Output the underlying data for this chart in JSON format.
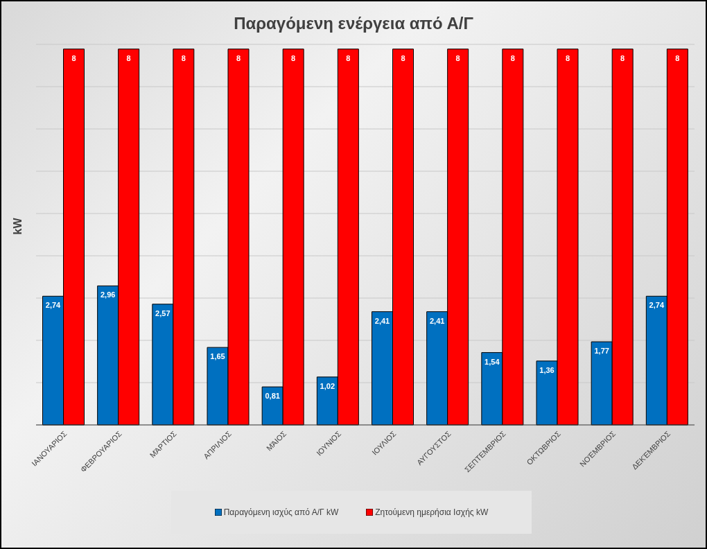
{
  "chart_data": {
    "type": "bar",
    "title": "Παραγόμενη ενέργεια από Α/Γ",
    "ylabel": "kW",
    "categories": [
      "ΙΑΝΟΥΑΡΙΟΣ",
      "ΦΕΒΡΟΥΑΡΙΟΣ",
      "ΜΆΡΤΙΟΣ",
      "ΑΠΡΙΛΙΟΣ",
      "ΜΆΙΟΣ",
      "ΙΟΥΝΙΟΣ",
      "ΙΟΥΛΙΟΣ",
      "ΑΥΓΟΥΣΤΟΣ",
      "ΣΕΠΤΕΜΒΡΙΟΣ",
      "ΟΚΤΩΒΡΙΟΣ",
      "ΝΟΈΜΒΡΙΟΣ",
      "ΔΕΚΈΜΒΡΙΟΣ"
    ],
    "series": [
      {
        "name": "Παραγόμενη ισχύς από Α/Γ kW",
        "color": "#0070c0",
        "values": [
          2.74,
          2.96,
          2.57,
          1.65,
          0.81,
          1.02,
          2.41,
          2.41,
          1.54,
          1.36,
          1.77,
          2.74
        ],
        "value_labels": [
          "2,74",
          "2,96",
          "2,57",
          "1,65",
          "0,81",
          "1,02",
          "2,41",
          "2,41",
          "1,54",
          "1,36",
          "1,77",
          "2,74"
        ]
      },
      {
        "name": "Ζητούμενη ημερήσια Ισχής kW",
        "color": "#ff0000",
        "values": [
          8,
          8,
          8,
          8,
          8,
          8,
          8,
          8,
          8,
          8,
          8,
          8
        ],
        "value_labels": [
          "8",
          "8",
          "8",
          "8",
          "8",
          "8",
          "8",
          "8",
          "8",
          "8",
          "8",
          "8"
        ]
      }
    ],
    "tick_labels": "x",
    "grid": "y",
    "legend": "bottom"
  }
}
